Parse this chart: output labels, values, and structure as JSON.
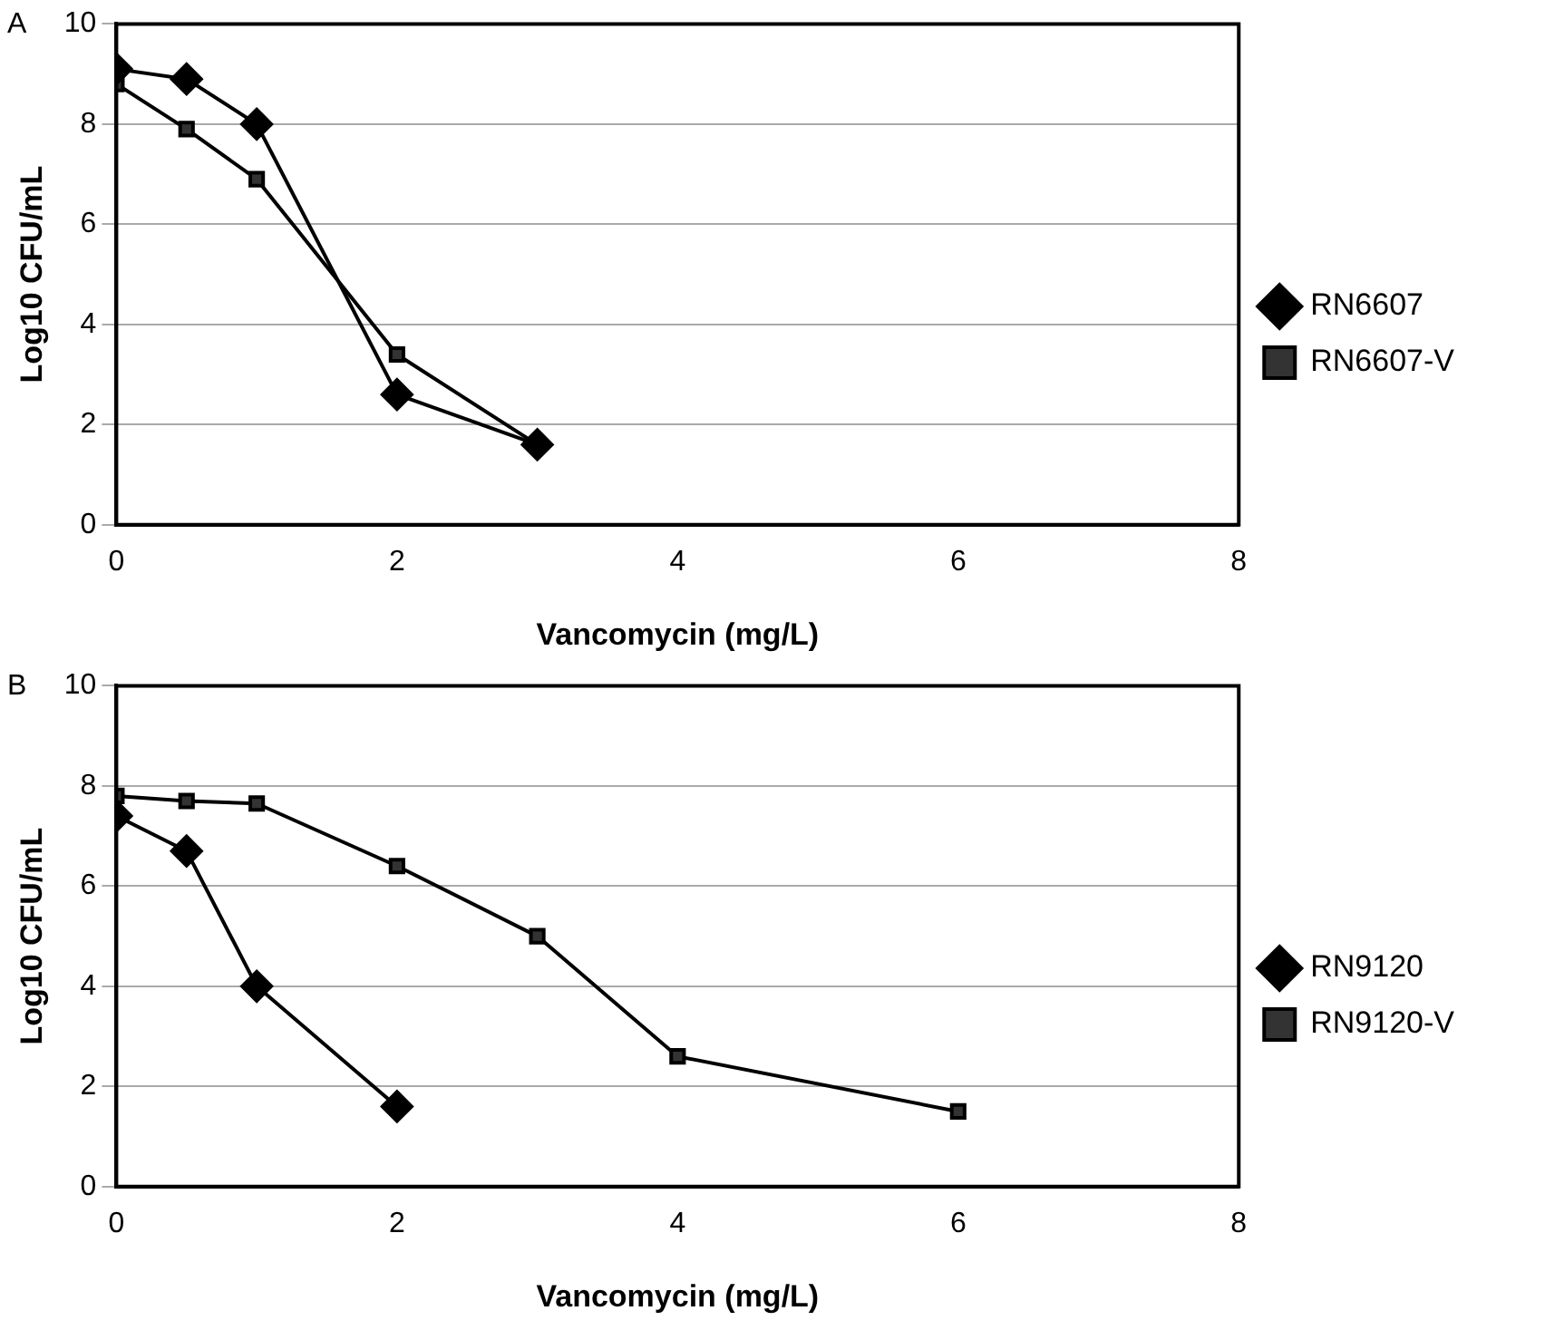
{
  "chart_data": [
    {
      "type": "line",
      "title": "A",
      "xlabel": "Vancomycin (mg/L)",
      "ylabel": "Log10 CFU/mL",
      "xlim": [
        0,
        8
      ],
      "xticks": [
        0,
        2,
        4,
        6,
        8
      ],
      "ylim": [
        0,
        10
      ],
      "yticks": [
        0,
        2,
        4,
        6,
        8,
        10
      ],
      "grid": "y",
      "legend": "right",
      "series": [
        {
          "name": "RN6607",
          "color": "#000000",
          "marker": "diamond",
          "x": [
            0,
            0.5,
            1,
            2,
            3
          ],
          "values": [
            9.1,
            8.9,
            8.0,
            2.6,
            1.6
          ]
        },
        {
          "name": "RN6607-V",
          "color": "#333333",
          "marker": "square",
          "x": [
            0,
            0.5,
            1,
            2,
            3
          ],
          "values": [
            8.8,
            7.9,
            6.9,
            3.4,
            1.6
          ]
        }
      ]
    },
    {
      "type": "line",
      "title": "B",
      "xlabel": "Vancomycin (mg/L)",
      "ylabel": "Log10 CFU/mL",
      "xlim": [
        0,
        8
      ],
      "xticks": [
        0,
        2,
        4,
        6,
        8
      ],
      "ylim": [
        0,
        10
      ],
      "yticks": [
        0,
        2,
        4,
        6,
        8,
        10
      ],
      "grid": "y",
      "legend": "right",
      "series": [
        {
          "name": "RN9120",
          "color": "#000000",
          "marker": "diamond",
          "x": [
            0,
            0.5,
            1,
            2
          ],
          "values": [
            7.4,
            6.7,
            4.0,
            1.6
          ]
        },
        {
          "name": "RN9120-V",
          "color": "#333333",
          "marker": "square",
          "x": [
            0,
            0.5,
            1,
            2,
            3,
            4,
            6
          ],
          "values": [
            7.8,
            7.7,
            7.65,
            6.4,
            5.0,
            2.6,
            1.5
          ]
        }
      ]
    }
  ]
}
